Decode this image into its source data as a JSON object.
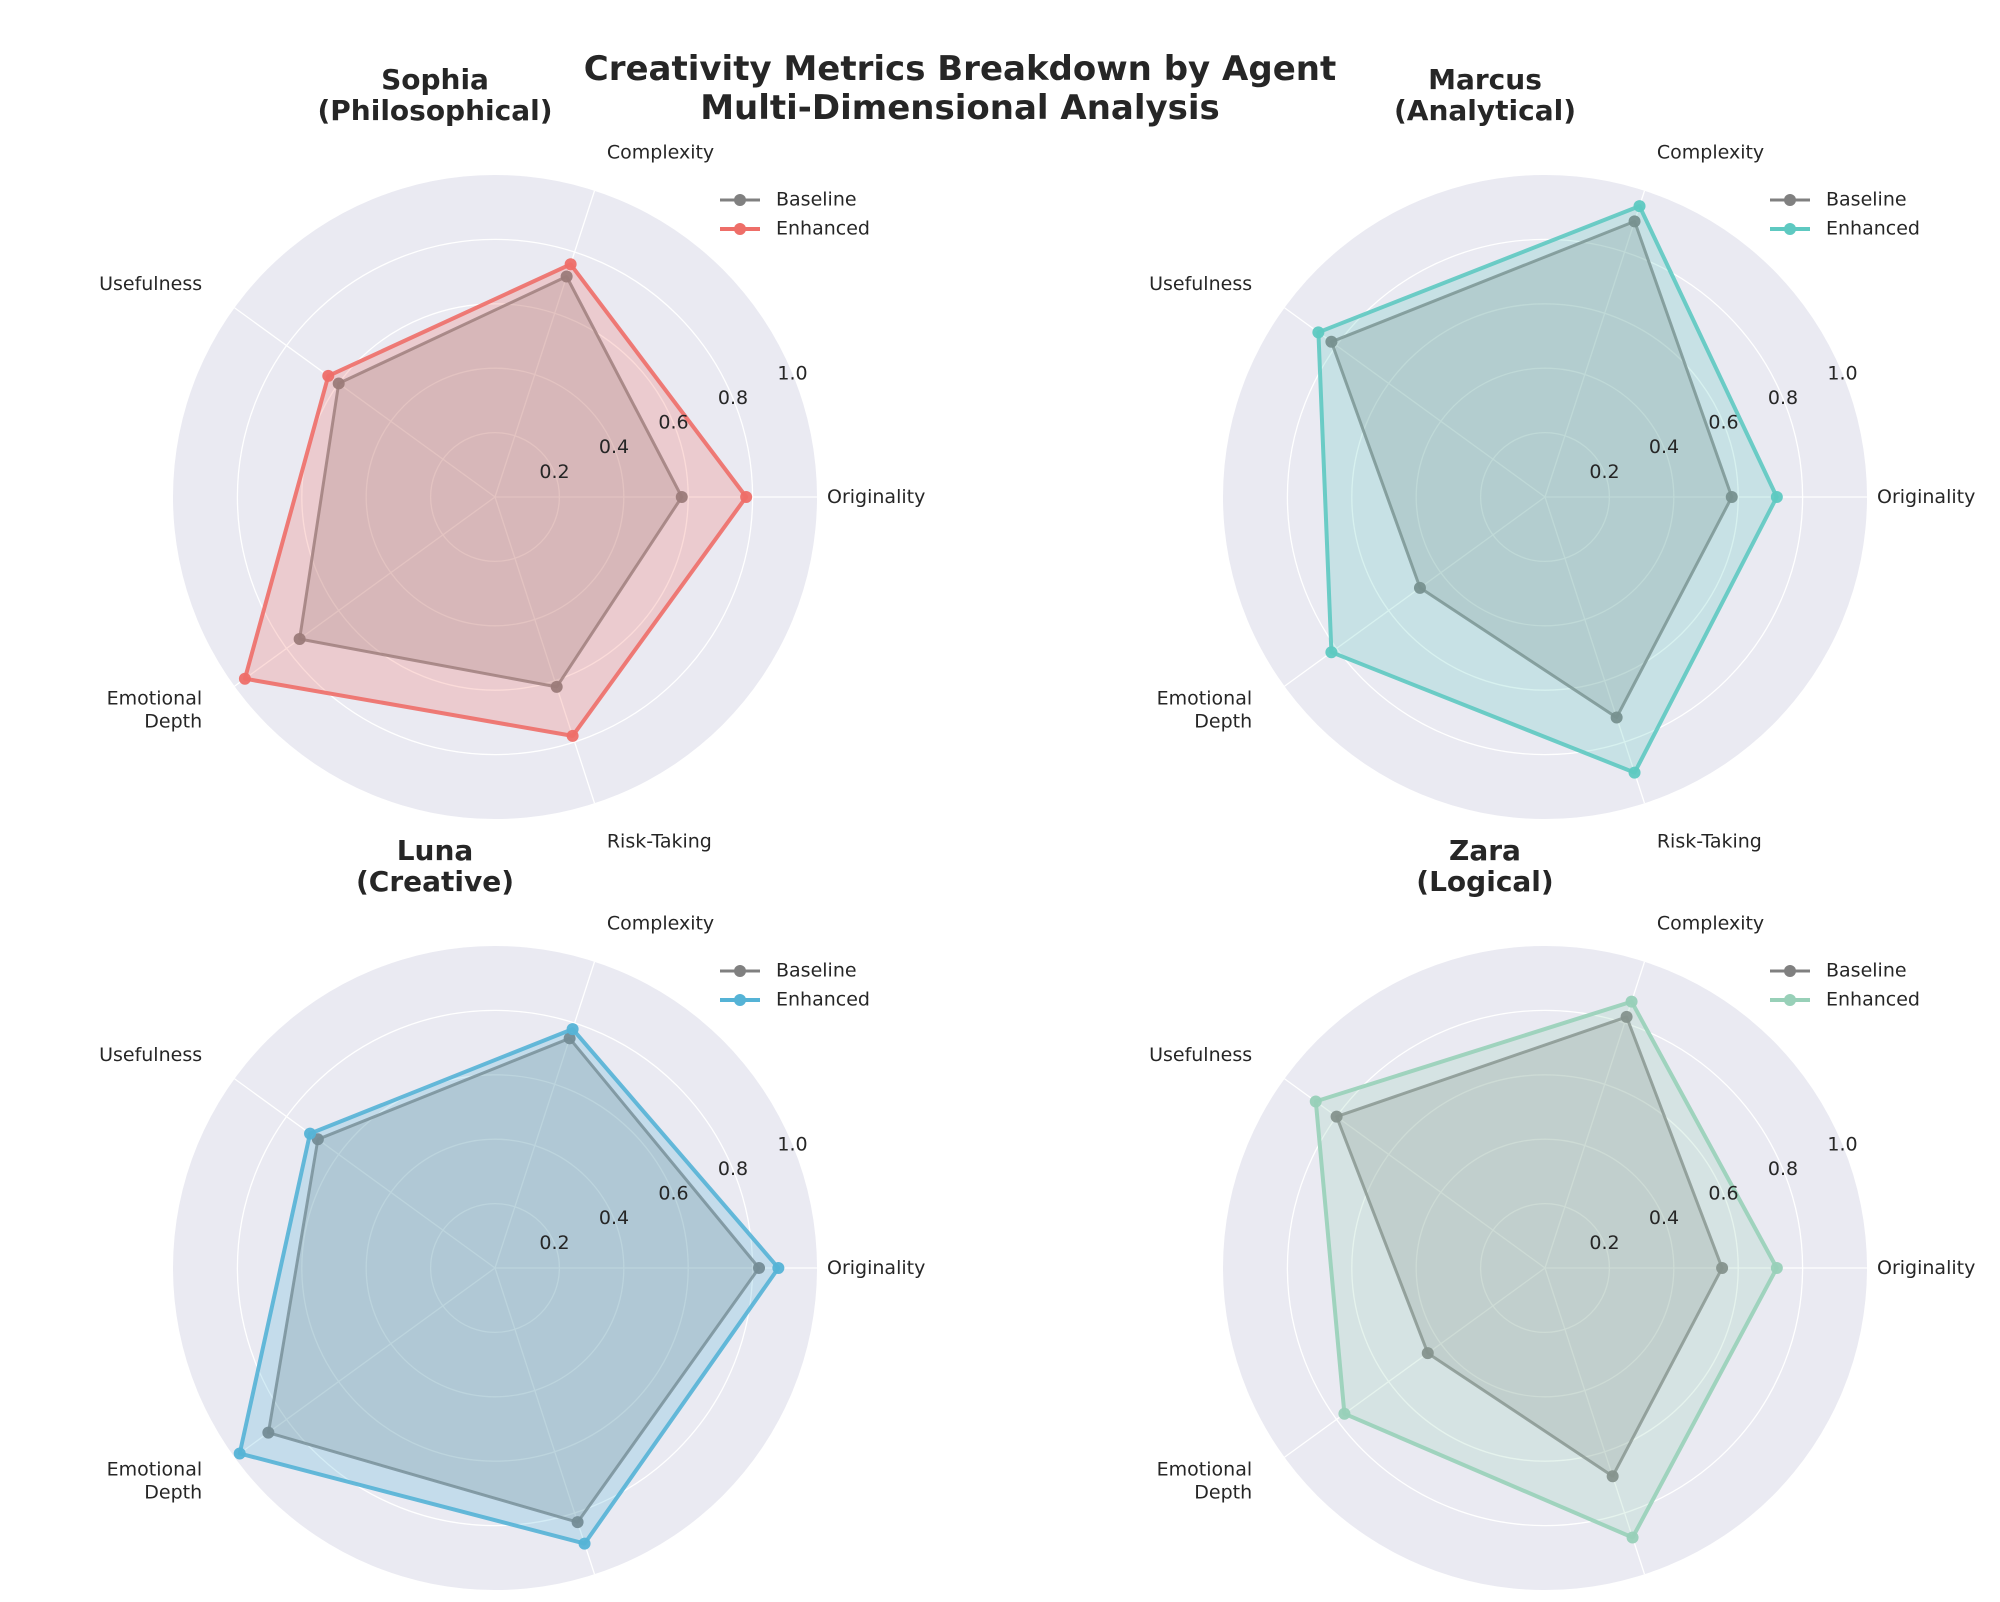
{
  "title_line1": "Creativity Metrics Breakdown by Agent",
  "title_line2": "Multi-Dimensional Analysis",
  "chart_data": [
    {
      "type": "radar",
      "title_line1": "Sophia",
      "title_line2": "(Philosophical)",
      "categories": [
        "Originality",
        "Complexity",
        "Usefulness",
        "Emotional\nDepth",
        "Risk-Taking"
      ],
      "rlim": [
        0,
        1.0
      ],
      "r_ticks": [
        0.2,
        0.4,
        0.6,
        0.8,
        1.0
      ],
      "tick_labels": [
        "0.2",
        "0.4",
        "0.6",
        "0.8",
        "1.0"
      ],
      "legend_position": "top-right",
      "series": [
        {
          "name": "Baseline",
          "color": "#808080",
          "values": [
            0.58,
            0.72,
            0.6,
            0.75,
            0.62
          ]
        },
        {
          "name": "Enhanced",
          "color": "#ee6e68",
          "values": [
            0.78,
            0.76,
            0.64,
            0.96,
            0.78
          ]
        }
      ]
    },
    {
      "type": "radar",
      "title_line1": "Marcus",
      "title_line2": "(Analytical)",
      "categories": [
        "Originality",
        "Complexity",
        "Usefulness",
        "Emotional\nDepth",
        "Risk-Taking"
      ],
      "rlim": [
        0,
        1.0
      ],
      "r_ticks": [
        0.2,
        0.4,
        0.6,
        0.8,
        1.0
      ],
      "tick_labels": [
        "0.2",
        "0.4",
        "0.6",
        "0.8",
        "1.0"
      ],
      "legend_position": "top-right",
      "series": [
        {
          "name": "Baseline",
          "color": "#808080",
          "values": [
            0.58,
            0.9,
            0.82,
            0.48,
            0.72
          ]
        },
        {
          "name": "Enhanced",
          "color": "#5ec9c1",
          "values": [
            0.72,
            0.95,
            0.87,
            0.82,
            0.9
          ]
        }
      ]
    },
    {
      "type": "radar",
      "title_line1": "Luna",
      "title_line2": "(Creative)",
      "categories": [
        "Originality",
        "Complexity",
        "Usefulness",
        "Emotional\nDepth",
        "Risk-Taking"
      ],
      "rlim": [
        0,
        1.0
      ],
      "r_ticks": [
        0.2,
        0.4,
        0.6,
        0.8,
        1.0
      ],
      "tick_labels": [
        "0.2",
        "0.4",
        "0.6",
        "0.8",
        "1.0"
      ],
      "legend_position": "top-right",
      "series": [
        {
          "name": "Baseline",
          "color": "#808080",
          "values": [
            0.82,
            0.75,
            0.68,
            0.87,
            0.83
          ]
        },
        {
          "name": "Enhanced",
          "color": "#55b3d6",
          "values": [
            0.88,
            0.78,
            0.71,
            0.98,
            0.9
          ]
        }
      ]
    },
    {
      "type": "radar",
      "title_line1": "Zara",
      "title_line2": "(Logical)",
      "categories": [
        "Originality",
        "Complexity",
        "Usefulness",
        "Emotional\nDepth",
        "Risk-Taking"
      ],
      "rlim": [
        0,
        1.0
      ],
      "r_ticks": [
        0.2,
        0.4,
        0.6,
        0.8,
        1.0
      ],
      "tick_labels": [
        "0.2",
        "0.4",
        "0.6",
        "0.8",
        "1.0"
      ],
      "legend_position": "top-right",
      "series": [
        {
          "name": "Baseline",
          "color": "#808080",
          "values": [
            0.55,
            0.82,
            0.8,
            0.45,
            0.68
          ]
        },
        {
          "name": "Enhanced",
          "color": "#98d0b8",
          "values": [
            0.72,
            0.87,
            0.88,
            0.77,
            0.88
          ]
        }
      ]
    }
  ]
}
